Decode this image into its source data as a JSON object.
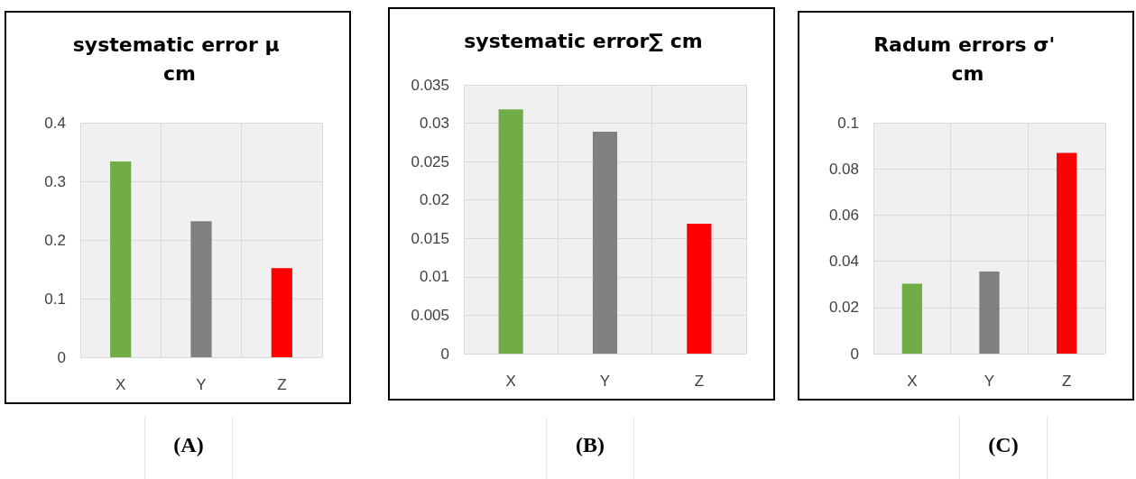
{
  "chart_data": [
    {
      "type": "bar",
      "title": "systematic error μ cm",
      "categories": [
        "X",
        "Y",
        "Z"
      ],
      "values": [
        0.334,
        0.232,
        0.152
      ],
      "colors": [
        "#70ad47",
        "#808080",
        "#ff0000"
      ],
      "ylim": [
        0,
        0.4
      ],
      "yticks": [
        0,
        0.1,
        0.2,
        0.3,
        0.4
      ],
      "grid": true,
      "annotations": [
        "(A)"
      ]
    },
    {
      "type": "bar",
      "title": "systematic error∑ cm",
      "categories": [
        "X",
        "Y",
        "Z"
      ],
      "values": [
        0.0318,
        0.0289,
        0.0169
      ],
      "colors": [
        "#70ad47",
        "#808080",
        "#ff0000"
      ],
      "ylim": [
        0,
        0.035
      ],
      "yticks": [
        0,
        0.005,
        0.01,
        0.015,
        0.02,
        0.025,
        0.03,
        0.035
      ],
      "grid": true,
      "annotations": [
        "(B)"
      ]
    },
    {
      "type": "bar",
      "title": "Radum errors σ' cm",
      "categories": [
        "X",
        "Y",
        "Z"
      ],
      "values": [
        0.0303,
        0.0355,
        0.0869
      ],
      "colors": [
        "#70ad47",
        "#808080",
        "#ff0000"
      ],
      "ylim": [
        0,
        0.1
      ],
      "yticks": [
        0,
        0.02,
        0.04,
        0.06,
        0.08,
        0.1
      ],
      "grid": true,
      "annotations": [
        "(C)"
      ]
    }
  ]
}
